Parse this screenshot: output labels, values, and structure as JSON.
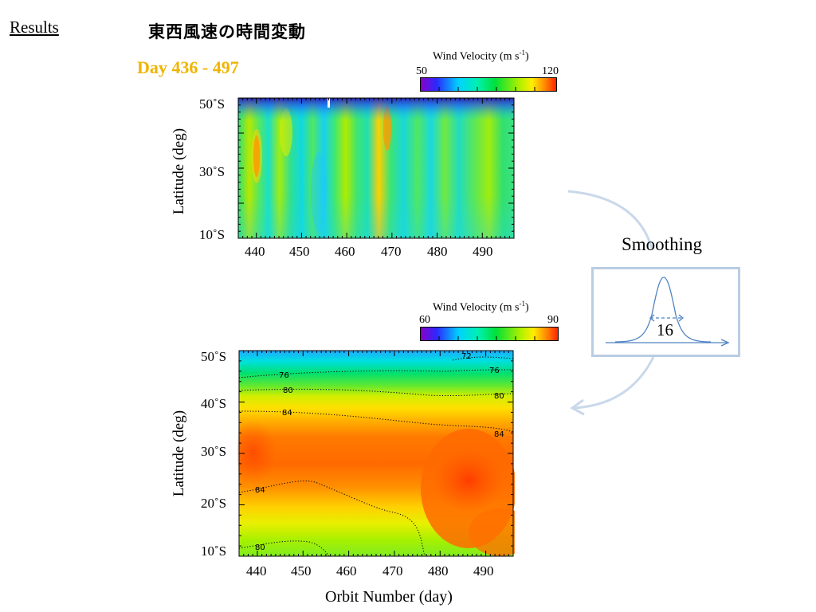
{
  "header": {
    "section": "Results",
    "title": "東西風速の時間変動",
    "day_range": "Day 436 - 497"
  },
  "smoothing": {
    "label": "Smoothing",
    "window": "16"
  },
  "colors": {
    "day_range": "#f0b400",
    "arrow": "#c9d8ea",
    "inset_box": "#b9cde3",
    "gaussian": "#4e82c2"
  },
  "chart_data": [
    {
      "type": "heatmap",
      "title": "",
      "xlabel": "",
      "ylabel": "Latitude (deg)",
      "xlim": [
        436,
        497
      ],
      "ylim": [
        10,
        50
      ],
      "x_ticks": [
        "440",
        "450",
        "460",
        "470",
        "480",
        "490"
      ],
      "y_ticks": [
        "10˚S",
        "30˚S",
        "50˚S"
      ],
      "colorbar": {
        "title": "Wind Velocity (m s",
        "title_sup": "-1",
        "title_end": ")",
        "min": 50,
        "max": 120,
        "min_label": "50",
        "max_label": "120"
      }
    },
    {
      "type": "heatmap",
      "title": "",
      "xlabel": "Orbit Number (day)",
      "ylabel": "Latitude (deg)",
      "xlim": [
        436,
        496
      ],
      "ylim": [
        10,
        50
      ],
      "x_ticks": [
        "440",
        "450",
        "460",
        "470",
        "480",
        "490"
      ],
      "y_ticks": [
        "10˚S",
        "20˚S",
        "30˚S",
        "40˚S",
        "50˚S"
      ],
      "colorbar": {
        "title": "Wind Velocity (m s",
        "title_sup": "-1",
        "title_end": ")",
        "min": 60,
        "max": 90,
        "min_label": "60",
        "max_label": "90"
      },
      "contour_labels": [
        "72",
        "76",
        "76",
        "80",
        "80",
        "84",
        "84",
        "84",
        "80"
      ]
    }
  ]
}
